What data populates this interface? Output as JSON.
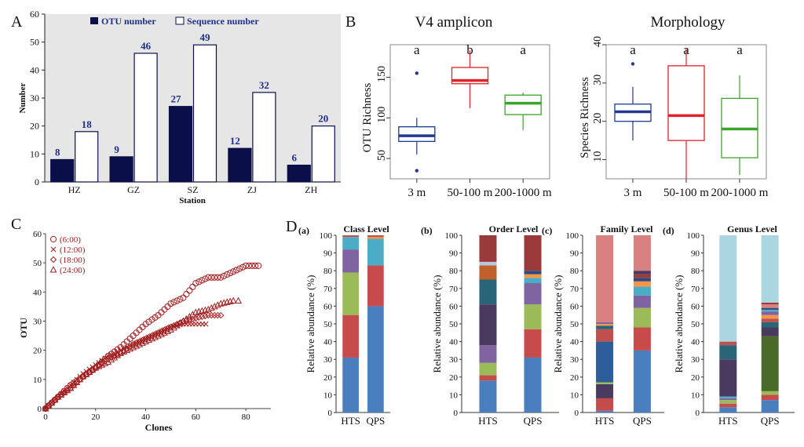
{
  "panels": {
    "a": "A",
    "b": "B",
    "c": "C",
    "d": "D"
  },
  "colors": {
    "navy": "#0a0f4a",
    "number_blue": "#1f2f8a",
    "box_blue": "#1f3a8f",
    "box_red": "#e0202a",
    "box_green": "#3aa32a",
    "clone_red": "#a02020",
    "plot_bg": "#e6e6e6"
  },
  "chart_data": [
    {
      "type": "bar",
      "categories": [
        "HZ",
        "GZ",
        "SZ",
        "ZJ",
        "ZH"
      ],
      "series": [
        {
          "name": "OTU number",
          "values": [
            8,
            9,
            27,
            12,
            6
          ],
          "fill": "navy"
        },
        {
          "name": "Sequence number",
          "values": [
            18,
            46,
            49,
            32,
            20
          ],
          "fill": "white"
        }
      ],
      "value_labels": [
        "8",
        "18",
        "9",
        "46",
        "27",
        "49",
        "12",
        "32",
        "6",
        "20"
      ],
      "xlabel": "Station",
      "ylabel": "Number",
      "ylim": [
        0,
        60
      ],
      "yticks": [
        "0",
        "10",
        "20",
        "30",
        "40",
        "50",
        "60"
      ],
      "legend": "top"
    },
    {
      "type": "box",
      "title": "V4 amplicon",
      "categories": [
        "3 m",
        "50-100 m",
        "200-1000 m"
      ],
      "ylabel": "OTU Richness",
      "ylim": [
        25,
        190
      ],
      "yticks": [
        "50",
        "100",
        "150"
      ],
      "boxes": [
        {
          "min": 55,
          "q1": 71,
          "median": 78,
          "q3": 89,
          "max": 100,
          "outliers": [
            155,
            35
          ]
        },
        {
          "min": 112,
          "q1": 142,
          "median": 146,
          "q3": 162,
          "max": 183,
          "outliers": []
        },
        {
          "min": 85,
          "q1": 104,
          "median": 118,
          "q3": 128,
          "max": 131,
          "outliers": []
        }
      ],
      "letters": [
        "a",
        "b",
        "a"
      ]
    },
    {
      "type": "box",
      "title": "Morphology",
      "categories": [
        "3 m",
        "50-100 m",
        "200-1000 m"
      ],
      "ylabel": "Species Richness",
      "ylim": [
        5,
        40
      ],
      "yticks": [
        "10",
        "20",
        "30",
        "40"
      ],
      "boxes": [
        {
          "min": 15,
          "q1": 20,
          "median": 22.5,
          "q3": 24.5,
          "max": 29,
          "outliers": [
            35
          ]
        },
        {
          "min": 5,
          "q1": 15,
          "median": 21.5,
          "q3": 34.5,
          "max": 39,
          "outliers": []
        },
        {
          "min": 6,
          "q1": 10.5,
          "median": 18,
          "q3": 26,
          "max": 32,
          "outliers": []
        }
      ],
      "letters": [
        "a",
        "a",
        "a"
      ]
    },
    {
      "type": "scatter",
      "xlabel": "Clones",
      "ylabel": "OTU",
      "xlim": [
        0,
        90
      ],
      "ylim": [
        0,
        60
      ],
      "xticks": [
        "0",
        "20",
        "40",
        "60",
        "80"
      ],
      "yticks": [
        "0",
        "10",
        "20",
        "30",
        "40",
        "50",
        "60"
      ],
      "series": [
        {
          "name": "(6:00)",
          "marker": "circle",
          "x": [
            0,
            5,
            10,
            15,
            20,
            25,
            30,
            35,
            40,
            45,
            50,
            55,
            60,
            65,
            70,
            75,
            80,
            85
          ],
          "y": [
            0,
            4,
            8,
            11,
            14,
            18,
            21,
            25,
            29,
            32,
            36,
            38,
            43,
            45,
            45,
            47,
            49,
            49
          ]
        },
        {
          "name": "(12:00)",
          "marker": "cross",
          "x": [
            0,
            5,
            10,
            15,
            20,
            25,
            30,
            35,
            40,
            45,
            50,
            55,
            60,
            64
          ],
          "y": [
            0,
            4,
            8,
            12,
            15,
            18,
            20,
            22,
            24,
            26,
            28,
            29,
            29,
            29
          ]
        },
        {
          "name": "(18:00)",
          "marker": "diamond",
          "x": [
            0,
            5,
            10,
            15,
            20,
            25,
            30,
            35,
            40,
            45,
            50,
            55,
            60,
            65,
            70
          ],
          "y": [
            0,
            4,
            7,
            11,
            14,
            17,
            19,
            22,
            24,
            26,
            28,
            30,
            31,
            32,
            32
          ]
        },
        {
          "name": "(24:00)",
          "marker": "triangle",
          "x": [
            0,
            5,
            10,
            15,
            20,
            25,
            30,
            35,
            40,
            45,
            50,
            55,
            60,
            65,
            70,
            75,
            77
          ],
          "y": [
            0,
            4,
            7,
            11,
            14,
            16,
            19,
            21,
            23,
            25,
            27,
            30,
            33,
            34,
            36,
            37,
            37
          ]
        }
      ],
      "legend": "top-left"
    },
    {
      "type": "bar",
      "stacked": true,
      "ylabel": "Relative abundance (%)",
      "ylim": [
        0,
        100
      ],
      "yticks": [
        "0",
        "10",
        "20",
        "30",
        "40",
        "50",
        "60",
        "70",
        "80",
        "90",
        "100"
      ],
      "categories": [
        "HTS",
        "QPS"
      ],
      "subplots": [
        {
          "label": "(a)",
          "title": "Class Level",
          "stacks": [
            [
              {
                "v": 31,
                "c": "#4a7fbf"
              },
              {
                "v": 24,
                "c": "#c84b4b"
              },
              {
                "v": 24,
                "c": "#9bbb59"
              },
              {
                "v": 13,
                "c": "#8064a2"
              },
              {
                "v": 7,
                "c": "#4bacc6"
              },
              {
                "v": 1,
                "c": "#c0504d"
              }
            ],
            [
              {
                "v": 60,
                "c": "#4a7fbf"
              },
              {
                "v": 23,
                "c": "#c84b4b"
              },
              {
                "v": 15,
                "c": "#4bacc6"
              },
              {
                "v": 1,
                "c": "#f79646"
              },
              {
                "v": 1,
                "c": "#c0504d"
              }
            ]
          ]
        },
        {
          "label": "(b)",
          "title": "Order Level",
          "stacks": [
            [
              {
                "v": 18,
                "c": "#4a7fbf"
              },
              {
                "v": 3,
                "c": "#c84b4b"
              },
              {
                "v": 7,
                "c": "#9bbb59"
              },
              {
                "v": 10,
                "c": "#8064a2"
              },
              {
                "v": 23,
                "c": "#4a3a5f"
              },
              {
                "v": 14,
                "c": "#276577"
              },
              {
                "v": 8,
                "c": "#c0602a"
              },
              {
                "v": 2,
                "c": "#b7c7e0"
              },
              {
                "v": 15,
                "c": "#9b3a3a"
              }
            ],
            [
              {
                "v": 31,
                "c": "#4a7fbf"
              },
              {
                "v": 16,
                "c": "#c84b4b"
              },
              {
                "v": 14,
                "c": "#9bbb59"
              },
              {
                "v": 12,
                "c": "#8064a2"
              },
              {
                "v": 3,
                "c": "#4bacc6"
              },
              {
                "v": 2,
                "c": "#f79646"
              },
              {
                "v": 2,
                "c": "#2e4a7a"
              },
              {
                "v": 20,
                "c": "#9b3a3a"
              }
            ]
          ]
        },
        {
          "label": "(c)",
          "title": "Family Level",
          "stacks": [
            [
              {
                "v": 1,
                "c": "#4a7fbf"
              },
              {
                "v": 7,
                "c": "#c84b4b"
              },
              {
                "v": 8,
                "c": "#4a3a5f"
              },
              {
                "v": 1,
                "c": "#9bbb59"
              },
              {
                "v": 23,
                "c": "#2e5e99"
              },
              {
                "v": 7,
                "c": "#c0504d"
              },
              {
                "v": 2,
                "c": "#276577"
              },
              {
                "v": 1,
                "c": "#f79646"
              },
              {
                "v": 1,
                "c": "#8064a2"
              },
              {
                "v": 49,
                "c": "#d98080"
              }
            ],
            [
              {
                "v": 35,
                "c": "#4a7fbf"
              },
              {
                "v": 13,
                "c": "#c84b4b"
              },
              {
                "v": 11,
                "c": "#9bbb59"
              },
              {
                "v": 7,
                "c": "#8064a2"
              },
              {
                "v": 5,
                "c": "#4bacc6"
              },
              {
                "v": 3,
                "c": "#f79646"
              },
              {
                "v": 2,
                "c": "#2e4a7a"
              },
              {
                "v": 2,
                "c": "#9b3a3a"
              },
              {
                "v": 2,
                "c": "#4a3a5f"
              },
              {
                "v": 20,
                "c": "#d98080"
              }
            ]
          ]
        },
        {
          "label": "(d)",
          "title": "Genus Level",
          "stacks": [
            [
              {
                "v": 3,
                "c": "#4a7fbf"
              },
              {
                "v": 2,
                "c": "#c84b4b"
              },
              {
                "v": 2,
                "c": "#9bbb59"
              },
              {
                "v": 1,
                "c": "#8064a2"
              },
              {
                "v": 1,
                "c": "#4bacc6"
              },
              {
                "v": 21,
                "c": "#4a3a5f"
              },
              {
                "v": 8,
                "c": "#276577"
              },
              {
                "v": 2,
                "c": "#c0504d"
              },
              {
                "v": 60,
                "c": "#a9d6e0"
              }
            ],
            [
              {
                "v": 7,
                "c": "#4a7fbf"
              },
              {
                "v": 3,
                "c": "#c84b4b"
              },
              {
                "v": 2,
                "c": "#9bbb59"
              },
              {
                "v": 31,
                "c": "#4a6a2a"
              },
              {
                "v": 5,
                "c": "#4a3a5f"
              },
              {
                "v": 3,
                "c": "#276577"
              },
              {
                "v": 2,
                "c": "#c0504d"
              },
              {
                "v": 2,
                "c": "#f79646"
              },
              {
                "v": 2,
                "c": "#8064a2"
              },
              {
                "v": 1,
                "c": "#4bacc6"
              },
              {
                "v": 1,
                "c": "#2e4a7a"
              },
              {
                "v": 2,
                "c": "#d98080"
              },
              {
                "v": 1,
                "c": "#9b3a3a"
              },
              {
                "v": 38,
                "c": "#a9d6e0"
              }
            ]
          ]
        }
      ]
    }
  ]
}
